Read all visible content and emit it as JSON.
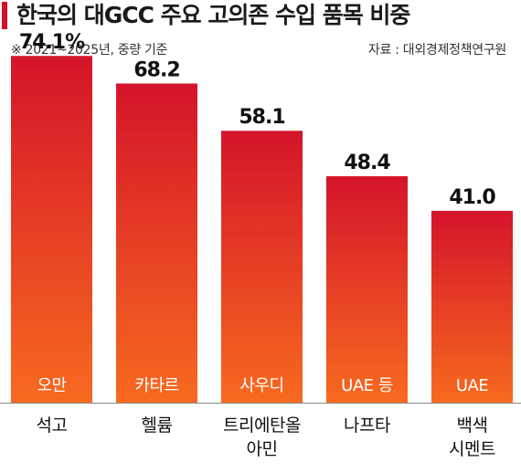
{
  "header": {
    "title": "한국의 대GCC 주요 고의존 수입 품목 비중",
    "subtitle": "※ 2021~2025년, 중량 기준",
    "source": "자료 : 대외경제정책연구원"
  },
  "colors": {
    "accent": "#d7102a",
    "bar_top": "#d4142a",
    "bar_bottom": "#f76a1f"
  },
  "chart_data": {
    "type": "bar",
    "title": "한국의 대GCC 주요 고의존 수입 품목 비중",
    "subtitle": "※ 2021~2025년, 중량 기준",
    "ylim": [
      0,
      80
    ],
    "grid": false,
    "categories": [
      "석고",
      "헬륨",
      "트리에탄올아민",
      "나프타",
      "백색시멘트"
    ],
    "category_lines": [
      [
        "석고"
      ],
      [
        "헬륨"
      ],
      [
        "트리에탄올",
        "아민"
      ],
      [
        "나프타"
      ],
      [
        "백색",
        "시멘트"
      ]
    ],
    "countries": [
      "오만",
      "카타르",
      "사우디",
      "UAE 등",
      "UAE"
    ],
    "values": [
      74.1,
      68.2,
      58.1,
      48.4,
      41.0
    ],
    "value_labels": [
      "74.1%",
      "68.2",
      "58.1",
      "48.4",
      "41.0"
    ]
  }
}
